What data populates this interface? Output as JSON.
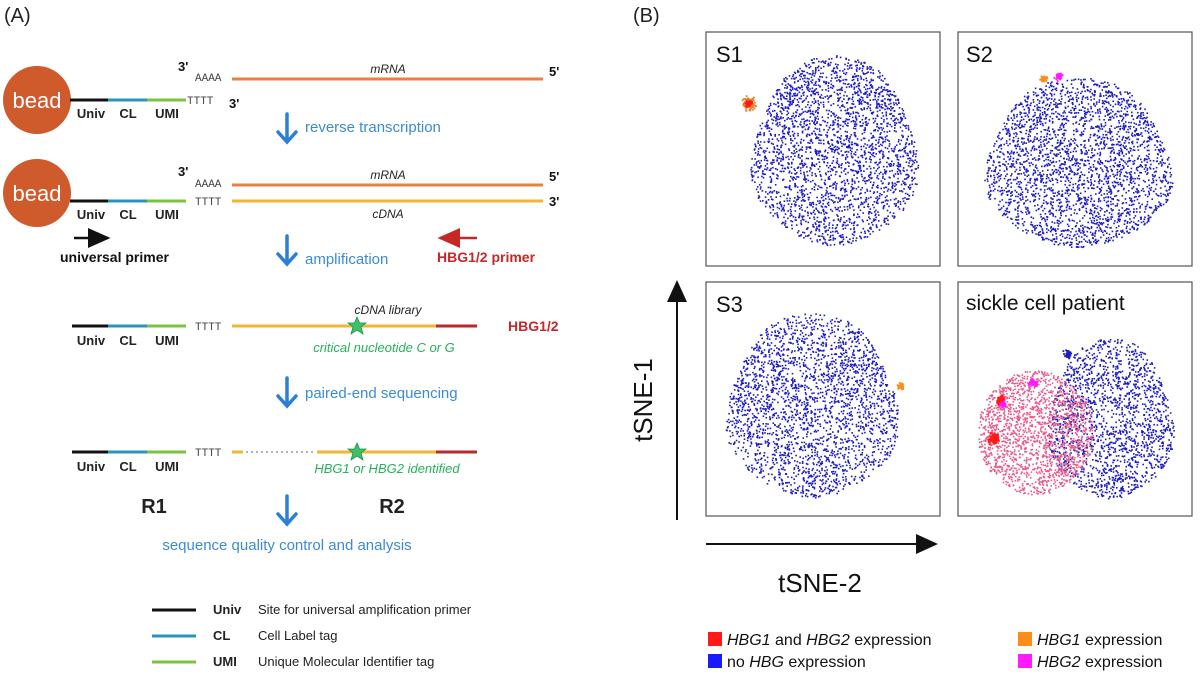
{
  "panel_a": {
    "label": "(A)",
    "bead_label": "bead",
    "seg_univ": "Univ",
    "seg_cl": "CL",
    "seg_umi": "UMI",
    "three_prime": "3'",
    "five_prime": "5'",
    "polyA": "AAAA",
    "polyT": "TTTT",
    "mrna_label": "mRNA",
    "cdna_label": "cDNA",
    "step_reverse_transcription": "reverse transcription",
    "universal_primer": "universal primer",
    "step_amplification": "amplification",
    "hbg_primer": "HBG1/2 primer",
    "cdna_library": "cDNA library",
    "hbg12": "HBG1/2",
    "critical_nucleotide": "critical nucleotide C or G",
    "step_paired_end": "paired-end sequencing",
    "hbg_identified": "HBG1 or HBG2 identified",
    "r1": "R1",
    "r2": "R2",
    "step_qc": "sequence quality control and analysis",
    "legend": [
      {
        "key": "Univ",
        "desc": "Site for universal amplification primer",
        "color": "#111111"
      },
      {
        "key": "CL",
        "desc": "Cell Label tag",
        "color": "#2a93bd"
      },
      {
        "key": "UMI",
        "desc": "Unique Molecular Identifier tag",
        "color": "#7cc242"
      }
    ],
    "colors": {
      "bead": "#cf5a2c",
      "mrna": "#e8813f",
      "cdna": "#f2b632",
      "hbg": "#b52a2a",
      "arrow_blue": "#2c7fd6",
      "text_blue": "#3b8bd4",
      "green": "#27b05a"
    }
  },
  "panel_b": {
    "label": "(B)",
    "y_axis": "tSNE-1",
    "x_axis": "tSNE-2",
    "plots": [
      {
        "name": "S1"
      },
      {
        "name": "S2"
      },
      {
        "name": "S3"
      },
      {
        "name": "sickle cell patient"
      }
    ],
    "legend": [
      {
        "parts": [
          [
            "HBG1",
            true
          ],
          [
            " and ",
            false
          ],
          [
            "HBG2",
            true
          ],
          [
            " expression",
            false
          ]
        ],
        "color": "#ff1a1a"
      },
      {
        "parts": [
          [
            "HBG1",
            true
          ],
          [
            " expression",
            false
          ]
        ],
        "color": "#ff8c1a"
      },
      {
        "parts": [
          [
            "no ",
            false
          ],
          [
            "HBG",
            true
          ],
          [
            " expression",
            false
          ]
        ],
        "color": "#1a1aff"
      },
      {
        "parts": [
          [
            "HBG2",
            true
          ],
          [
            " expression",
            false
          ]
        ],
        "color": "#ff1aff"
      }
    ]
  }
}
